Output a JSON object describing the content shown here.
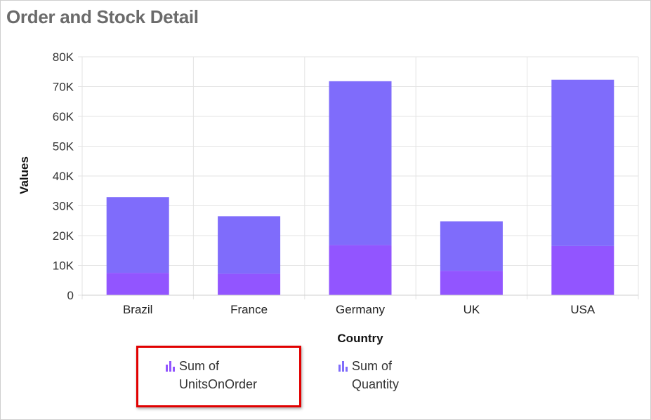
{
  "title": "Order and Stock Detail",
  "chart_data": {
    "type": "bar",
    "stacked": true,
    "categories": [
      "Brazil",
      "France",
      "Germany",
      "UK",
      "USA"
    ],
    "series": [
      {
        "name": "Sum of UnitsOnOrder",
        "values": [
          7500,
          7200,
          16800,
          8200,
          16500
        ],
        "color": "#9255ff"
      },
      {
        "name": "Sum of Quantity",
        "values": [
          25400,
          19300,
          55000,
          16600,
          55800
        ],
        "color": "#7f6cfb"
      }
    ],
    "xlabel": "Country",
    "ylabel": "Values",
    "ylim": [
      0,
      80000
    ],
    "yticks": [
      {
        "value": 0,
        "label": "0"
      },
      {
        "value": 10000,
        "label": "10K"
      },
      {
        "value": 20000,
        "label": "20K"
      },
      {
        "value": 30000,
        "label": "30K"
      },
      {
        "value": 40000,
        "label": "40K"
      },
      {
        "value": 50000,
        "label": "50K"
      },
      {
        "value": 60000,
        "label": "60K"
      },
      {
        "value": 70000,
        "label": "70K"
      },
      {
        "value": 80000,
        "label": "80K"
      }
    ],
    "grid": true,
    "legend_position": "bottom"
  },
  "legend": [
    {
      "line1": "Sum of",
      "line2": "UnitsOnOrder",
      "icon": "bar-chart-icon",
      "color": "#9255ff"
    },
    {
      "line1": "Sum of",
      "line2": "Quantity",
      "icon": "bar-chart-icon",
      "color": "#7f6cfb"
    }
  ],
  "colors": {
    "highlight": "#e10000",
    "grid": "#e3e3e3"
  }
}
